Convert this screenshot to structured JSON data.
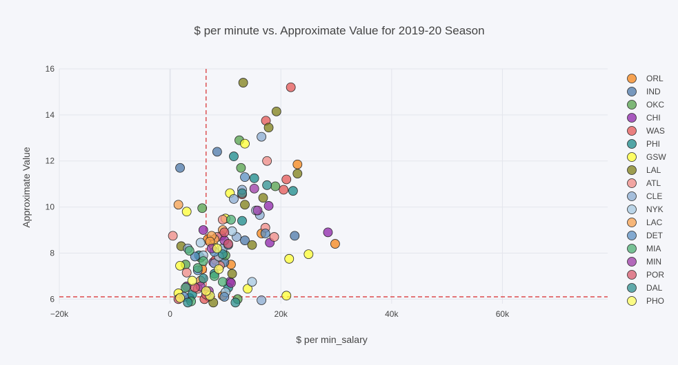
{
  "chart_data": {
    "type": "scatter",
    "title": "$ per minute vs. Approximate Value for 2019-20 Season",
    "xlabel": "$ per min_salary",
    "ylabel": "Approximate Value",
    "xlim": [
      -20000,
      79000
    ],
    "ylim": [
      5.8,
      16
    ],
    "x_ticks": [
      -20000,
      0,
      20000,
      40000,
      60000
    ],
    "x_tick_labels": [
      "−20k",
      "0",
      "20k",
      "40k",
      "60k"
    ],
    "y_ticks": [
      6,
      8,
      10,
      12,
      14,
      16
    ],
    "y_tick_labels": [
      "6",
      "8",
      "10",
      "12",
      "14",
      "16"
    ],
    "grid": true,
    "legend_position": "right",
    "reference_lines": {
      "x": 6500,
      "y": 6.1,
      "color": "#d62728",
      "style": "dashed"
    },
    "series": [
      {
        "name": "ORL",
        "color": "#f58518",
        "points": [
          [
            29800,
            8.4
          ],
          [
            23000,
            11.85
          ],
          [
            16500,
            8.85
          ],
          [
            6800,
            8.6
          ],
          [
            9500,
            6.15
          ],
          [
            11000,
            7.5
          ],
          [
            5800,
            7.3
          ]
        ]
      },
      {
        "name": "IND",
        "color": "#4c78a8",
        "points": [
          [
            1800,
            11.7
          ],
          [
            8500,
            12.4
          ],
          [
            22500,
            8.75
          ],
          [
            13500,
            8.55
          ],
          [
            9800,
            7.6
          ],
          [
            3500,
            6.05
          ],
          [
            7000,
            6.1
          ]
        ]
      },
      {
        "name": "OKC",
        "color": "#54a24b",
        "points": [
          [
            5800,
            9.95
          ],
          [
            12500,
            12.9
          ],
          [
            12800,
            11.7
          ],
          [
            19000,
            10.9
          ],
          [
            2800,
            7.5
          ],
          [
            5500,
            7.8
          ],
          [
            10000,
            7.9
          ],
          [
            12200,
            6.0
          ]
        ]
      },
      {
        "name": "CHI",
        "color": "#8e24aa",
        "points": [
          [
            28500,
            8.9
          ],
          [
            17800,
            10.05
          ],
          [
            18000,
            8.45
          ],
          [
            6000,
            9.0
          ],
          [
            9300,
            8.75
          ],
          [
            7800,
            7.6
          ],
          [
            10800,
            6.75
          ],
          [
            3000,
            6.55
          ]
        ]
      },
      {
        "name": "WAS",
        "color": "#e45756",
        "points": [
          [
            21800,
            15.2
          ],
          [
            17300,
            13.75
          ],
          [
            21000,
            11.2
          ],
          [
            20500,
            10.75
          ],
          [
            13000,
            10.55
          ],
          [
            8200,
            7.7
          ],
          [
            6200,
            6.0
          ]
        ]
      },
      {
        "name": "PHI",
        "color": "#1a8a8a",
        "points": [
          [
            11500,
            12.2
          ],
          [
            15200,
            11.25
          ],
          [
            22200,
            10.7
          ],
          [
            13000,
            9.4
          ],
          [
            5200,
            7.9
          ],
          [
            8000,
            7.1
          ],
          [
            4000,
            6.2
          ],
          [
            10500,
            6.5
          ]
        ]
      },
      {
        "name": "GSW",
        "color": "#ffff33",
        "points": [
          [
            13500,
            12.75
          ],
          [
            10800,
            10.6
          ],
          [
            3000,
            9.8
          ],
          [
            25000,
            7.95
          ],
          [
            21500,
            7.75
          ],
          [
            21000,
            6.15
          ],
          [
            14000,
            6.45
          ],
          [
            1800,
            7.45
          ],
          [
            1500,
            6.25
          ],
          [
            10000,
            9.5
          ],
          [
            7800,
            8.35
          ]
        ]
      },
      {
        "name": "LAL",
        "color": "#7f7f17",
        "points": [
          [
            13200,
            15.4
          ],
          [
            19200,
            14.15
          ],
          [
            17800,
            13.45
          ],
          [
            23000,
            11.45
          ],
          [
            16800,
            10.4
          ],
          [
            13500,
            10.1
          ],
          [
            14800,
            8.35
          ],
          [
            2000,
            8.3
          ],
          [
            11200,
            7.1
          ],
          [
            7800,
            5.85
          ]
        ]
      },
      {
        "name": "ATL",
        "color": "#ef8a84",
        "points": [
          [
            17500,
            12.0
          ],
          [
            9500,
            9.45
          ],
          [
            17200,
            9.1
          ],
          [
            18800,
            8.7
          ],
          [
            500,
            8.75
          ],
          [
            8500,
            8.7
          ],
          [
            5000,
            6.45
          ],
          [
            3000,
            7.15
          ],
          [
            9000,
            7.45
          ]
        ]
      },
      {
        "name": "CLE",
        "color": "#89abd0",
        "points": [
          [
            16500,
            13.05
          ],
          [
            13000,
            10.75
          ],
          [
            11500,
            10.35
          ],
          [
            16200,
            9.65
          ],
          [
            12000,
            8.7
          ],
          [
            9500,
            8.2
          ],
          [
            8000,
            7.55
          ],
          [
            16500,
            5.95
          ],
          [
            3200,
            8.2
          ]
        ]
      },
      {
        "name": "NYK",
        "color": "#a6c8e0",
        "points": [
          [
            15500,
            9.85
          ],
          [
            11200,
            8.95
          ],
          [
            5500,
            8.45
          ],
          [
            14800,
            6.75
          ],
          [
            10000,
            6.3
          ],
          [
            8800,
            7.85
          ],
          [
            6000,
            7.9
          ]
        ]
      },
      {
        "name": "LAC",
        "color": "#f5a04d",
        "points": [
          [
            1500,
            10.1
          ],
          [
            8000,
            8.6
          ],
          [
            7500,
            8.75
          ],
          [
            9500,
            9.0
          ],
          [
            5500,
            6.8
          ],
          [
            7200,
            8.5
          ]
        ]
      },
      {
        "name": "DET",
        "color": "#5b8fc2",
        "points": [
          [
            13500,
            11.3
          ],
          [
            17200,
            8.85
          ],
          [
            10500,
            8.35
          ],
          [
            8000,
            8.05
          ],
          [
            4500,
            7.85
          ],
          [
            5000,
            7.25
          ],
          [
            2500,
            6.1
          ],
          [
            9800,
            6.1
          ]
        ]
      },
      {
        "name": "MIA",
        "color": "#4caf73",
        "points": [
          [
            11000,
            9.45
          ],
          [
            9500,
            6.75
          ],
          [
            6000,
            7.65
          ],
          [
            3500,
            8.1
          ],
          [
            5000,
            7.35
          ],
          [
            8000,
            7.0
          ],
          [
            2800,
            6.5
          ],
          [
            3800,
            5.9
          ]
        ]
      },
      {
        "name": "MIN",
        "color": "#9c3aa6",
        "points": [
          [
            15200,
            10.8
          ],
          [
            15800,
            9.85
          ],
          [
            9800,
            8.55
          ],
          [
            7500,
            8.2
          ],
          [
            11000,
            6.7
          ],
          [
            5500,
            6.55
          ],
          [
            7000,
            6.35
          ]
        ]
      },
      {
        "name": "POR",
        "color": "#d7596c",
        "points": [
          [
            9800,
            8.9
          ],
          [
            10500,
            8.4
          ],
          [
            6500,
            6.2
          ],
          [
            4500,
            6.5
          ],
          [
            1500,
            6.0
          ]
        ]
      },
      {
        "name": "DAL",
        "color": "#2d8f8f",
        "points": [
          [
            17500,
            10.95
          ],
          [
            13000,
            10.6
          ],
          [
            9500,
            7.95
          ],
          [
            6000,
            6.9
          ],
          [
            3200,
            5.85
          ],
          [
            11800,
            5.85
          ]
        ]
      },
      {
        "name": "PHO",
        "color": "#fcfc5e",
        "points": [
          [
            8500,
            8.2
          ],
          [
            4000,
            6.8
          ],
          [
            7200,
            6.15
          ],
          [
            1800,
            6.05
          ],
          [
            6500,
            6.35
          ],
          [
            8800,
            7.3
          ]
        ]
      }
    ]
  }
}
